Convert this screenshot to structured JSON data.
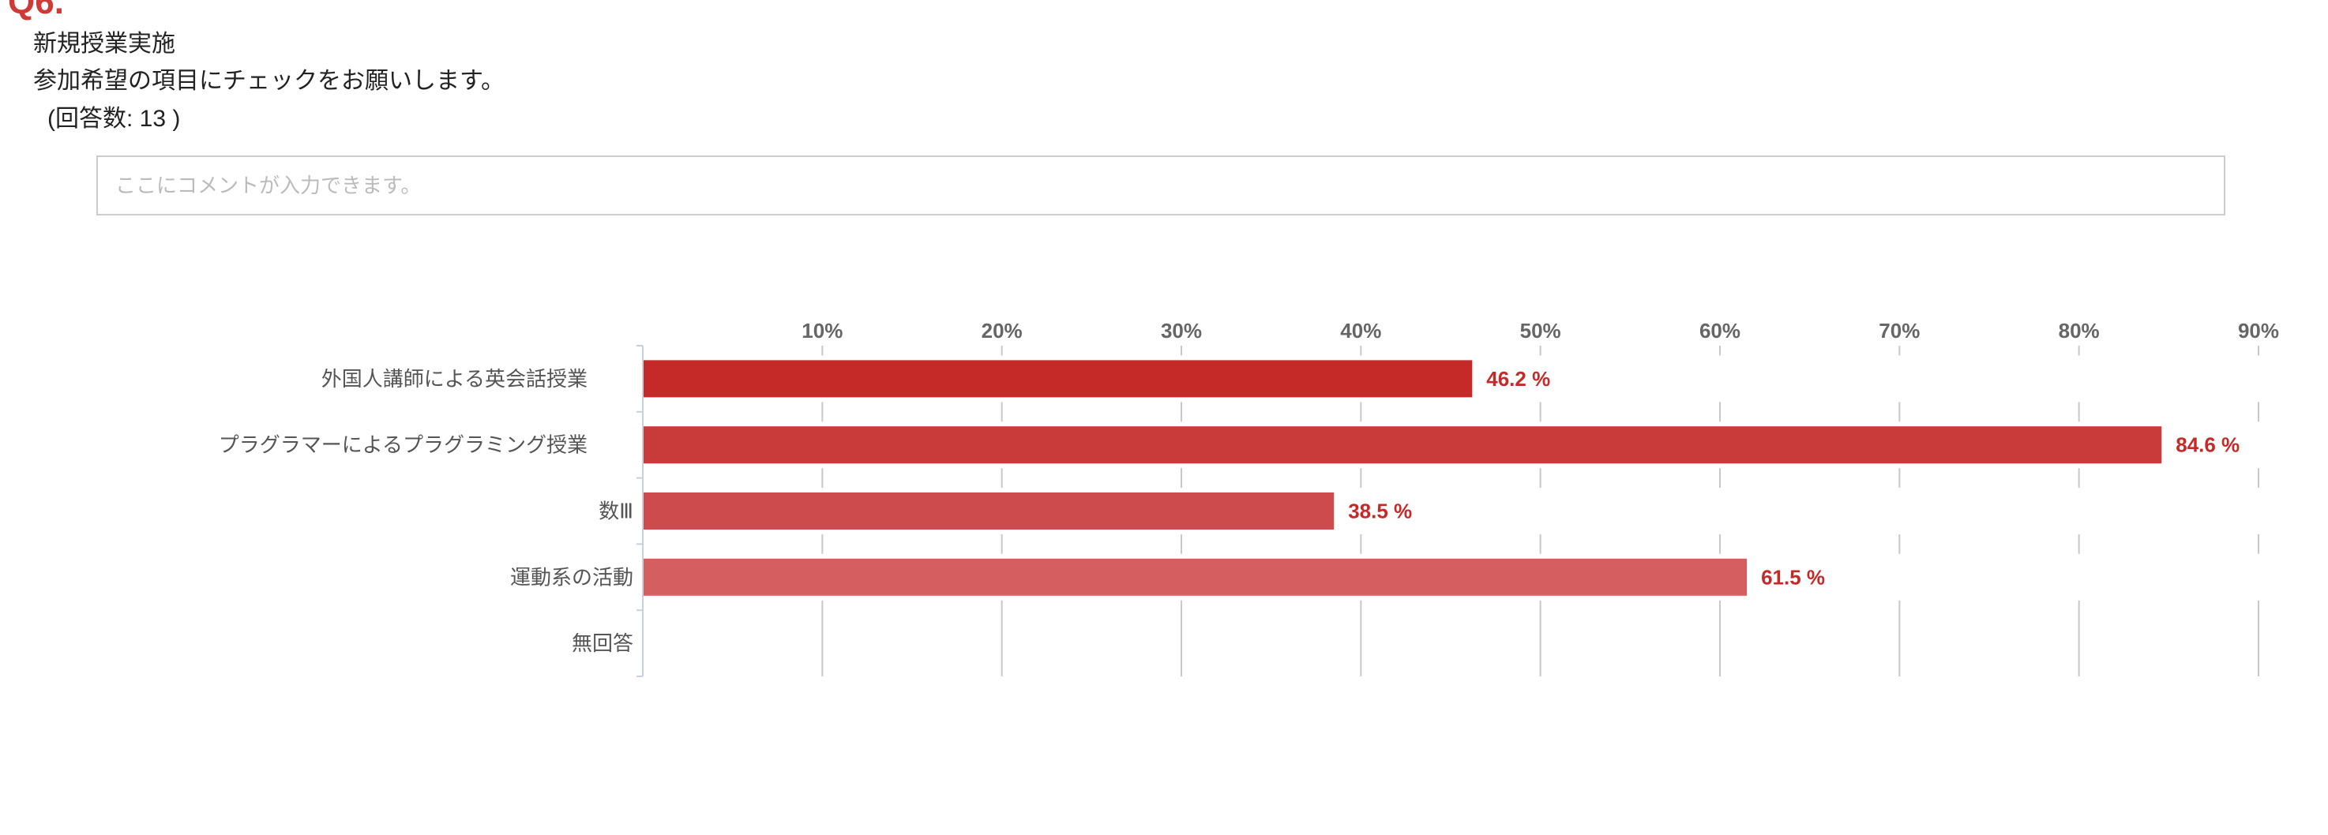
{
  "question": {
    "number": "Q6.",
    "title": "新規授業実施",
    "instruction": "参加希望の項目にチェックをお願いします。",
    "response_count": "(回答数: 13 )"
  },
  "comment": {
    "placeholder": "ここにコメントが入力できます。",
    "value": ""
  },
  "chart_data": {
    "type": "bar",
    "orientation": "horizontal",
    "categories": [
      "外国人講師による英会話授業",
      "プラグラマーによるプラグラミング授業",
      "数Ⅲ",
      "運動系の活動",
      "無回答"
    ],
    "values": [
      46.2,
      84.6,
      38.5,
      61.5,
      0
    ],
    "value_labels": [
      "46.2 %",
      "84.6 %",
      "38.5 %",
      "61.5 %",
      ""
    ],
    "colors": [
      "#c62a28",
      "#c93a3a",
      "#cd4b4d",
      "#d35f61",
      "#d8797a"
    ],
    "xlim": [
      0,
      90
    ],
    "xticks": [
      "10%",
      "20%",
      "30%",
      "40%",
      "50%",
      "60%",
      "70%",
      "80%",
      "90%"
    ],
    "xtick_values": [
      10,
      20,
      30,
      40,
      50,
      60,
      70,
      80,
      90
    ],
    "grid": true,
    "axis_position": "top",
    "label_color": "#c62a28"
  }
}
